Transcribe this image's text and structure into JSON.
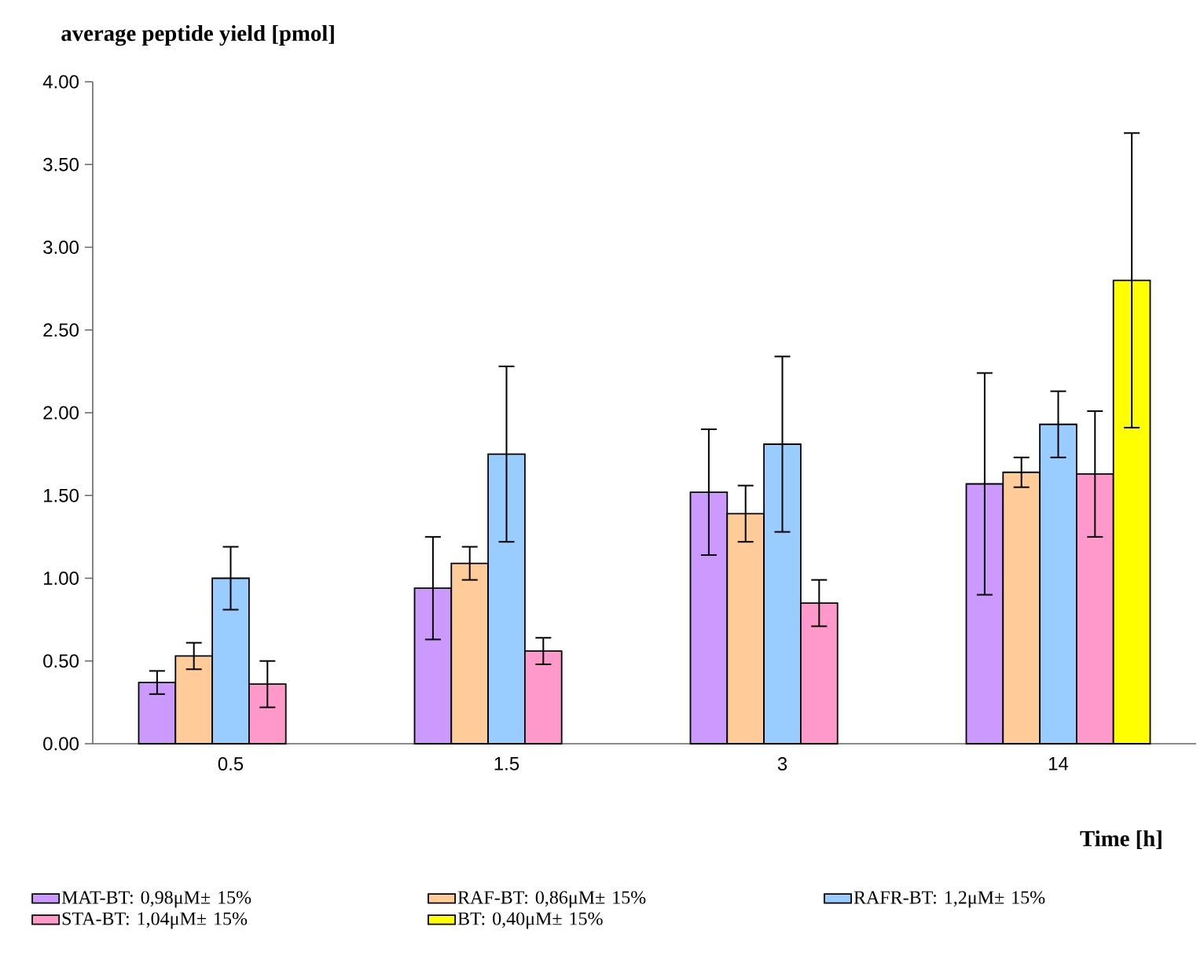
{
  "chart_data": {
    "type": "bar",
    "ylabel": "average peptide yield [pmol]",
    "xlabel": "Time [h]",
    "categories": [
      "0.5",
      "1.5",
      "3",
      "14"
    ],
    "ylim": [
      0,
      4
    ],
    "yticks": [
      {
        "value": 0,
        "label": "0.00"
      },
      {
        "value": 0.5,
        "label": "0.50"
      },
      {
        "value": 1,
        "label": "1.00"
      },
      {
        "value": 1.5,
        "label": "1.50"
      },
      {
        "value": 2,
        "label": "2.00"
      },
      {
        "value": 2.5,
        "label": "2.50"
      },
      {
        "value": 3,
        "label": "3.00"
      },
      {
        "value": 3.5,
        "label": "3.50"
      },
      {
        "value": 4,
        "label": "4.00"
      }
    ],
    "legend": "bottom",
    "series": [
      {
        "name": "MAT-BT: 0,98μM± 15%",
        "color": "#cc99ff",
        "values": [
          0.37,
          0.94,
          1.52,
          1.57
        ],
        "errors": [
          0.07,
          0.31,
          0.38,
          0.67
        ]
      },
      {
        "name": "RAF-BT: 0,86μM± 15%",
        "color": "#ffcc99",
        "values": [
          0.53,
          1.09,
          1.39,
          1.64
        ],
        "errors": [
          0.08,
          0.1,
          0.17,
          0.09
        ]
      },
      {
        "name": "RAFR-BT: 1,2μM± 15%",
        "color": "#99ccff",
        "values": [
          1.0,
          1.75,
          1.81,
          1.93
        ],
        "errors": [
          0.19,
          0.53,
          0.53,
          0.2
        ]
      },
      {
        "name": "STA-BT: 1,04μM± 15%",
        "color": "#ff99cc",
        "values": [
          0.36,
          0.56,
          0.85,
          1.63
        ],
        "errors": [
          0.14,
          0.08,
          0.14,
          0.38
        ]
      },
      {
        "name": "BT: 0,40μM± 15%",
        "color": "#ffff00",
        "values": [
          null,
          null,
          null,
          2.8
        ],
        "errors": [
          null,
          null,
          null,
          0.89
        ]
      }
    ]
  }
}
